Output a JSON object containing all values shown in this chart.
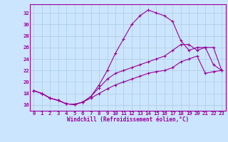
{
  "xlabel": "Windchill (Refroidissement éolien,°C)",
  "background_color": "#cce5ff",
  "line_color": "#990099",
  "grid_color": "#aaccdd",
  "xlim": [
    -0.5,
    23.5
  ],
  "ylim": [
    15.0,
    33.5
  ],
  "yticks": [
    16,
    18,
    20,
    22,
    24,
    26,
    28,
    30,
    32
  ],
  "xticks": [
    0,
    1,
    2,
    3,
    4,
    5,
    6,
    7,
    8,
    9,
    10,
    11,
    12,
    13,
    14,
    15,
    16,
    17,
    18,
    19,
    20,
    21,
    22,
    23
  ],
  "line1_x": [
    0,
    1,
    2,
    3,
    4,
    5,
    6,
    7,
    8,
    9,
    10,
    11,
    12,
    13,
    14,
    15,
    16,
    17,
    18,
    19,
    20,
    21,
    22,
    23
  ],
  "line1_y": [
    18.5,
    18.0,
    17.2,
    16.8,
    16.2,
    16.1,
    16.5,
    17.5,
    19.5,
    22.0,
    25.0,
    27.5,
    30.0,
    31.5,
    32.5,
    32.0,
    31.5,
    30.5,
    27.2,
    25.5,
    26.0,
    26.0,
    23.0,
    22.0
  ],
  "line2_x": [
    0,
    1,
    2,
    3,
    4,
    5,
    6,
    7,
    8,
    9,
    10,
    11,
    12,
    13,
    14,
    15,
    16,
    17,
    18,
    19,
    20,
    21,
    22,
    23
  ],
  "line2_y": [
    18.5,
    18.0,
    17.2,
    16.8,
    16.2,
    16.1,
    16.5,
    17.5,
    19.0,
    20.5,
    21.5,
    22.0,
    22.5,
    23.0,
    23.5,
    24.0,
    24.5,
    25.5,
    26.5,
    26.5,
    25.5,
    26.0,
    26.0,
    22.0
  ],
  "line3_x": [
    0,
    1,
    2,
    3,
    4,
    5,
    6,
    7,
    8,
    9,
    10,
    11,
    12,
    13,
    14,
    15,
    16,
    17,
    18,
    19,
    20,
    21,
    22,
    23
  ],
  "line3_y": [
    18.5,
    18.0,
    17.2,
    16.8,
    16.2,
    16.1,
    16.5,
    17.2,
    18.0,
    18.8,
    19.5,
    20.0,
    20.5,
    21.0,
    21.5,
    21.8,
    22.0,
    22.5,
    23.5,
    24.0,
    24.5,
    21.5,
    21.8,
    22.0
  ],
  "xlabel_fontsize": 5.5,
  "tick_fontsize": 5.2
}
